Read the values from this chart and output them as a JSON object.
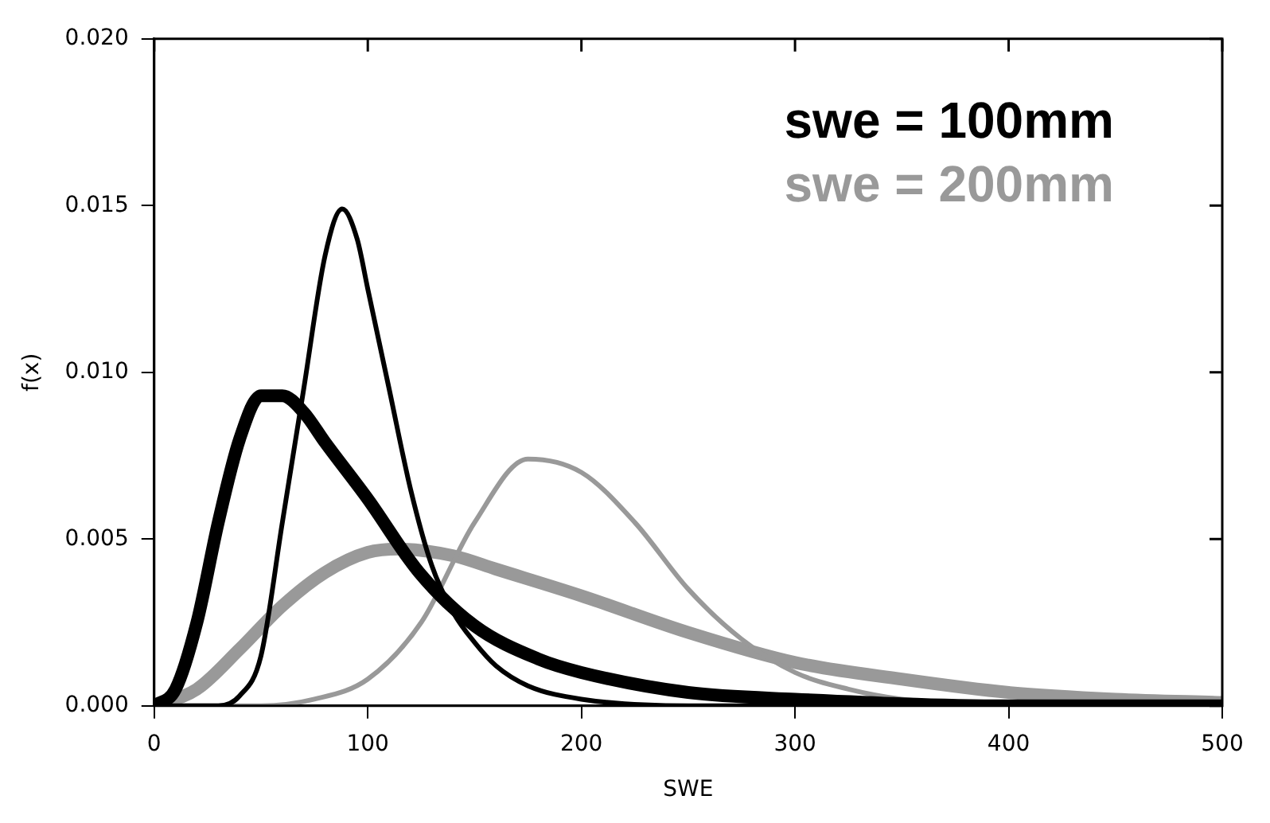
{
  "chart_data": {
    "type": "line",
    "xlabel": "SWE",
    "ylabel": "f(x)",
    "xlim": [
      0,
      500
    ],
    "xticks": [
      0,
      100,
      200,
      300,
      400,
      500
    ],
    "ylim": [
      0,
      0.02
    ],
    "yticks": [
      {
        "value": 0,
        "label": "0.000"
      },
      {
        "value": 0.005,
        "label": "0.005"
      },
      {
        "value": 0.01,
        "label": "0.010"
      },
      {
        "value": 0.015,
        "label": "0.015"
      },
      {
        "value": 0.02,
        "label": "0.020"
      }
    ],
    "grid": false,
    "legend": false,
    "marker": "none",
    "line_style": "solid",
    "annotations": [
      "swe = 100mm",
      "swe = 200mm"
    ],
    "series": [
      {
        "color": "#000000",
        "x": [
          0,
          30,
          40,
          50,
          60,
          70,
          80,
          88,
          95,
          100,
          110,
          120,
          130,
          140,
          150,
          160,
          175,
          200,
          250,
          500
        ],
        "values": [
          0,
          0,
          0.0003,
          0.0015,
          0.0055,
          0.0095,
          0.0135,
          0.0149,
          0.014,
          0.0125,
          0.0095,
          0.0065,
          0.0042,
          0.0028,
          0.0019,
          0.0012,
          0.0006,
          0.0002,
          0,
          0
        ]
      },
      {
        "color": "#000000",
        "x": [
          0,
          10,
          20,
          30,
          40,
          50,
          60,
          70,
          80,
          100,
          124,
          150,
          180,
          200,
          250,
          300,
          400,
          500
        ],
        "values": [
          0,
          0.0005,
          0.0025,
          0.0055,
          0.008,
          0.0093,
          0.0093,
          0.0088,
          0.0079,
          0.0062,
          0.004,
          0.0024,
          0.0014,
          0.001,
          0.0004,
          0.0002,
          0,
          0
        ]
      },
      {
        "color": "#999999",
        "x": [
          0,
          50,
          75,
          100,
          125,
          150,
          175,
          200,
          225,
          250,
          275,
          300,
          325,
          350,
          400,
          500
        ],
        "values": [
          0,
          0,
          0.0002,
          0.0008,
          0.0025,
          0.0055,
          0.0074,
          0.007,
          0.0055,
          0.0035,
          0.002,
          0.001,
          0.0005,
          0.0002,
          0,
          0
        ]
      },
      {
        "color": "#999999",
        "x": [
          0,
          20,
          40,
          60,
          80,
          100,
          115,
          140,
          160,
          200,
          250,
          300,
          350,
          400,
          450,
          500
        ],
        "values": [
          0,
          0.0005,
          0.0017,
          0.003,
          0.004,
          0.0046,
          0.0047,
          0.0045,
          0.0041,
          0.0033,
          0.0022,
          0.0013,
          0.0008,
          0.0004,
          0.0002,
          0.0001
        ]
      }
    ]
  }
}
